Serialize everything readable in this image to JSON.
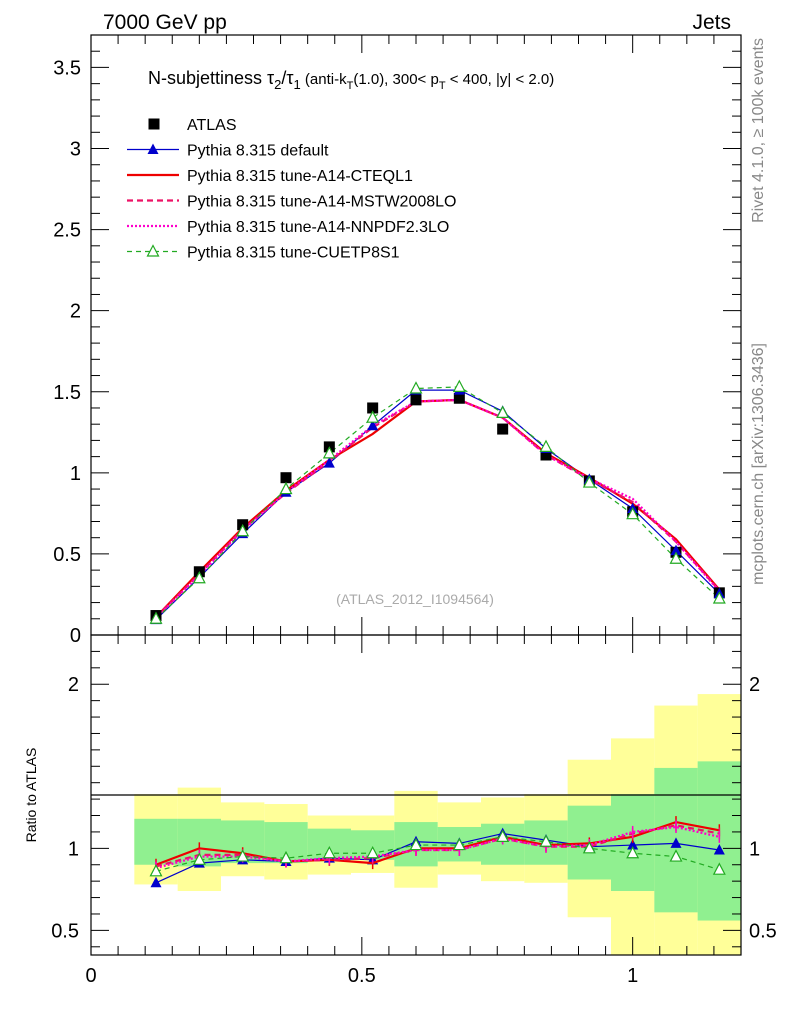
{
  "header": {
    "energy_label": "7000 GeV pp",
    "category_label": "Jets",
    "rivet_label": "Rivet 4.1.0, ≥ 100k events",
    "source_label": "mcplots.cern.ch [arXiv:1306.3436]",
    "analysis_id": "(ATLAS_2012_I1094564)"
  },
  "colors": {
    "atlas": "#000000",
    "default": "#0000cc",
    "cteql1": "#ee0000",
    "mstw": "#ee1166",
    "nnpdf": "#ff00cc",
    "cuetp8s1": "#22aa22",
    "band_inner": "#90f090",
    "band_outer": "#ffff99"
  },
  "chart_data": [
    {
      "type": "line",
      "title": "N-subjettiness τ2/τ1 (anti-kT(1.0), 300< pT < 400, |y| < 2.0)",
      "xlabel": "",
      "ylabel": "",
      "xlim": [
        0,
        1.2
      ],
      "ylim": [
        0,
        3.7
      ],
      "x": [
        0.12,
        0.2,
        0.28,
        0.36,
        0.44,
        0.52,
        0.6,
        0.68,
        0.76,
        0.84,
        0.92,
        1.0,
        1.08,
        1.16
      ],
      "series": [
        {
          "name": "ATLAS",
          "key": "atlas",
          "values": [
            0.12,
            0.39,
            0.68,
            0.97,
            1.16,
            1.4,
            1.45,
            1.46,
            1.27,
            1.11,
            0.95,
            0.76,
            0.51,
            0.26
          ]
        },
        {
          "name": "Pythia 8.315 default",
          "key": "default",
          "values": [
            0.095,
            0.355,
            0.625,
            0.88,
            1.06,
            1.29,
            1.51,
            1.51,
            1.38,
            1.15,
            0.96,
            0.78,
            0.52,
            0.255
          ]
        },
        {
          "name": "Pythia 8.315 tune-A14-CTEQL1",
          "key": "cteql1",
          "values": [
            0.11,
            0.39,
            0.66,
            0.89,
            1.08,
            1.24,
            1.44,
            1.45,
            1.34,
            1.12,
            0.97,
            0.81,
            0.59,
            0.28
          ]
        },
        {
          "name": "Pythia 8.315 tune-A14-MSTW2008LO",
          "key": "mstw",
          "values": [
            0.11,
            0.375,
            0.65,
            0.875,
            1.07,
            1.28,
            1.44,
            1.45,
            1.34,
            1.11,
            0.96,
            0.82,
            0.575,
            0.275
          ]
        },
        {
          "name": "Pythia 8.315 tune-A14-NNPDF2.3LO",
          "key": "nnpdf",
          "values": [
            0.105,
            0.37,
            0.645,
            0.88,
            1.08,
            1.29,
            1.44,
            1.45,
            1.34,
            1.11,
            0.965,
            0.84,
            0.575,
            0.27
          ]
        },
        {
          "name": "Pythia 8.315 tune-CUETP8S1",
          "key": "cuetp8s1",
          "values": [
            0.1,
            0.35,
            0.64,
            0.9,
            1.12,
            1.34,
            1.52,
            1.53,
            1.37,
            1.16,
            0.94,
            0.745,
            0.47,
            0.225
          ]
        }
      ],
      "yticks": [
        "3.5",
        "3",
        "2.5",
        "2",
        "1.5",
        "1",
        "0.5",
        "0"
      ]
    },
    {
      "type": "line",
      "title": "",
      "xlabel": "",
      "ylabel": "Ratio to ATLAS",
      "xlim": [
        0,
        1.2
      ],
      "ylim": [
        0.35,
        2.3
      ],
      "x": [
        0.12,
        0.2,
        0.28,
        0.36,
        0.44,
        0.52,
        0.6,
        0.68,
        0.76,
        0.84,
        0.92,
        1.0,
        1.08,
        1.16
      ],
      "bins": [
        0.08,
        0.16,
        0.24,
        0.32,
        0.4,
        0.48,
        0.56,
        0.64,
        0.72,
        0.8,
        0.88,
        0.96,
        1.04,
        1.12,
        1.2
      ],
      "band_inner": [
        [
          0.9,
          1.18
        ],
        [
          0.89,
          1.18
        ],
        [
          0.91,
          1.17
        ],
        [
          0.91,
          1.16
        ],
        [
          0.92,
          1.12
        ],
        [
          0.93,
          1.11
        ],
        [
          0.89,
          1.16
        ],
        [
          0.92,
          1.13
        ],
        [
          0.9,
          1.15
        ],
        [
          0.9,
          1.17
        ],
        [
          0.81,
          1.26
        ],
        [
          0.74,
          1.33
        ],
        [
          0.61,
          1.49
        ],
        [
          0.56,
          1.53
        ]
      ],
      "band_outer": [
        [
          0.78,
          1.33
        ],
        [
          0.74,
          1.37
        ],
        [
          0.83,
          1.28
        ],
        [
          0.81,
          1.27
        ],
        [
          0.84,
          1.2
        ],
        [
          0.85,
          1.2
        ],
        [
          0.76,
          1.35
        ],
        [
          0.84,
          1.28
        ],
        [
          0.8,
          1.31
        ],
        [
          0.79,
          1.33
        ],
        [
          0.58,
          1.54
        ],
        [
          0.35,
          1.67
        ],
        [
          0.35,
          1.87
        ],
        [
          0.35,
          1.94
        ]
      ],
      "series": [
        {
          "name": "Pythia 8.315 default",
          "key": "default",
          "values": [
            0.79,
            0.91,
            0.93,
            0.92,
            0.94,
            0.93,
            1.04,
            1.03,
            1.09,
            1.05,
            1.01,
            1.02,
            1.03,
            0.99
          ]
        },
        {
          "name": "Pythia 8.315 tune-A14-CTEQL1",
          "key": "cteql1",
          "values": [
            0.9,
            1.0,
            0.97,
            0.92,
            0.93,
            0.91,
            1.0,
            1.0,
            1.07,
            1.02,
            1.03,
            1.07,
            1.16,
            1.11
          ]
        },
        {
          "name": "Pythia 8.315 tune-A14-MSTW2008LO",
          "key": "mstw",
          "values": [
            0.89,
            0.96,
            0.96,
            0.92,
            0.93,
            0.94,
            0.99,
            0.99,
            1.06,
            1.01,
            1.01,
            1.09,
            1.14,
            1.09
          ]
        },
        {
          "name": "Pythia 8.315 tune-A14-NNPDF2.3LO",
          "key": "nnpdf",
          "values": [
            0.88,
            0.95,
            0.95,
            0.92,
            0.94,
            0.95,
            0.99,
            0.99,
            1.06,
            1.01,
            1.02,
            1.1,
            1.13,
            1.07
          ]
        },
        {
          "name": "Pythia 8.315 tune-CUETP8S1",
          "key": "cuetp8s1",
          "values": [
            0.86,
            0.93,
            0.95,
            0.94,
            0.97,
            0.97,
            1.02,
            1.02,
            1.07,
            1.04,
            1.0,
            0.97,
            0.95,
            0.87
          ]
        }
      ],
      "yticks": [
        "2",
        "1",
        "0.5"
      ],
      "xticks": [
        "0",
        "0.5",
        "1"
      ]
    }
  ]
}
